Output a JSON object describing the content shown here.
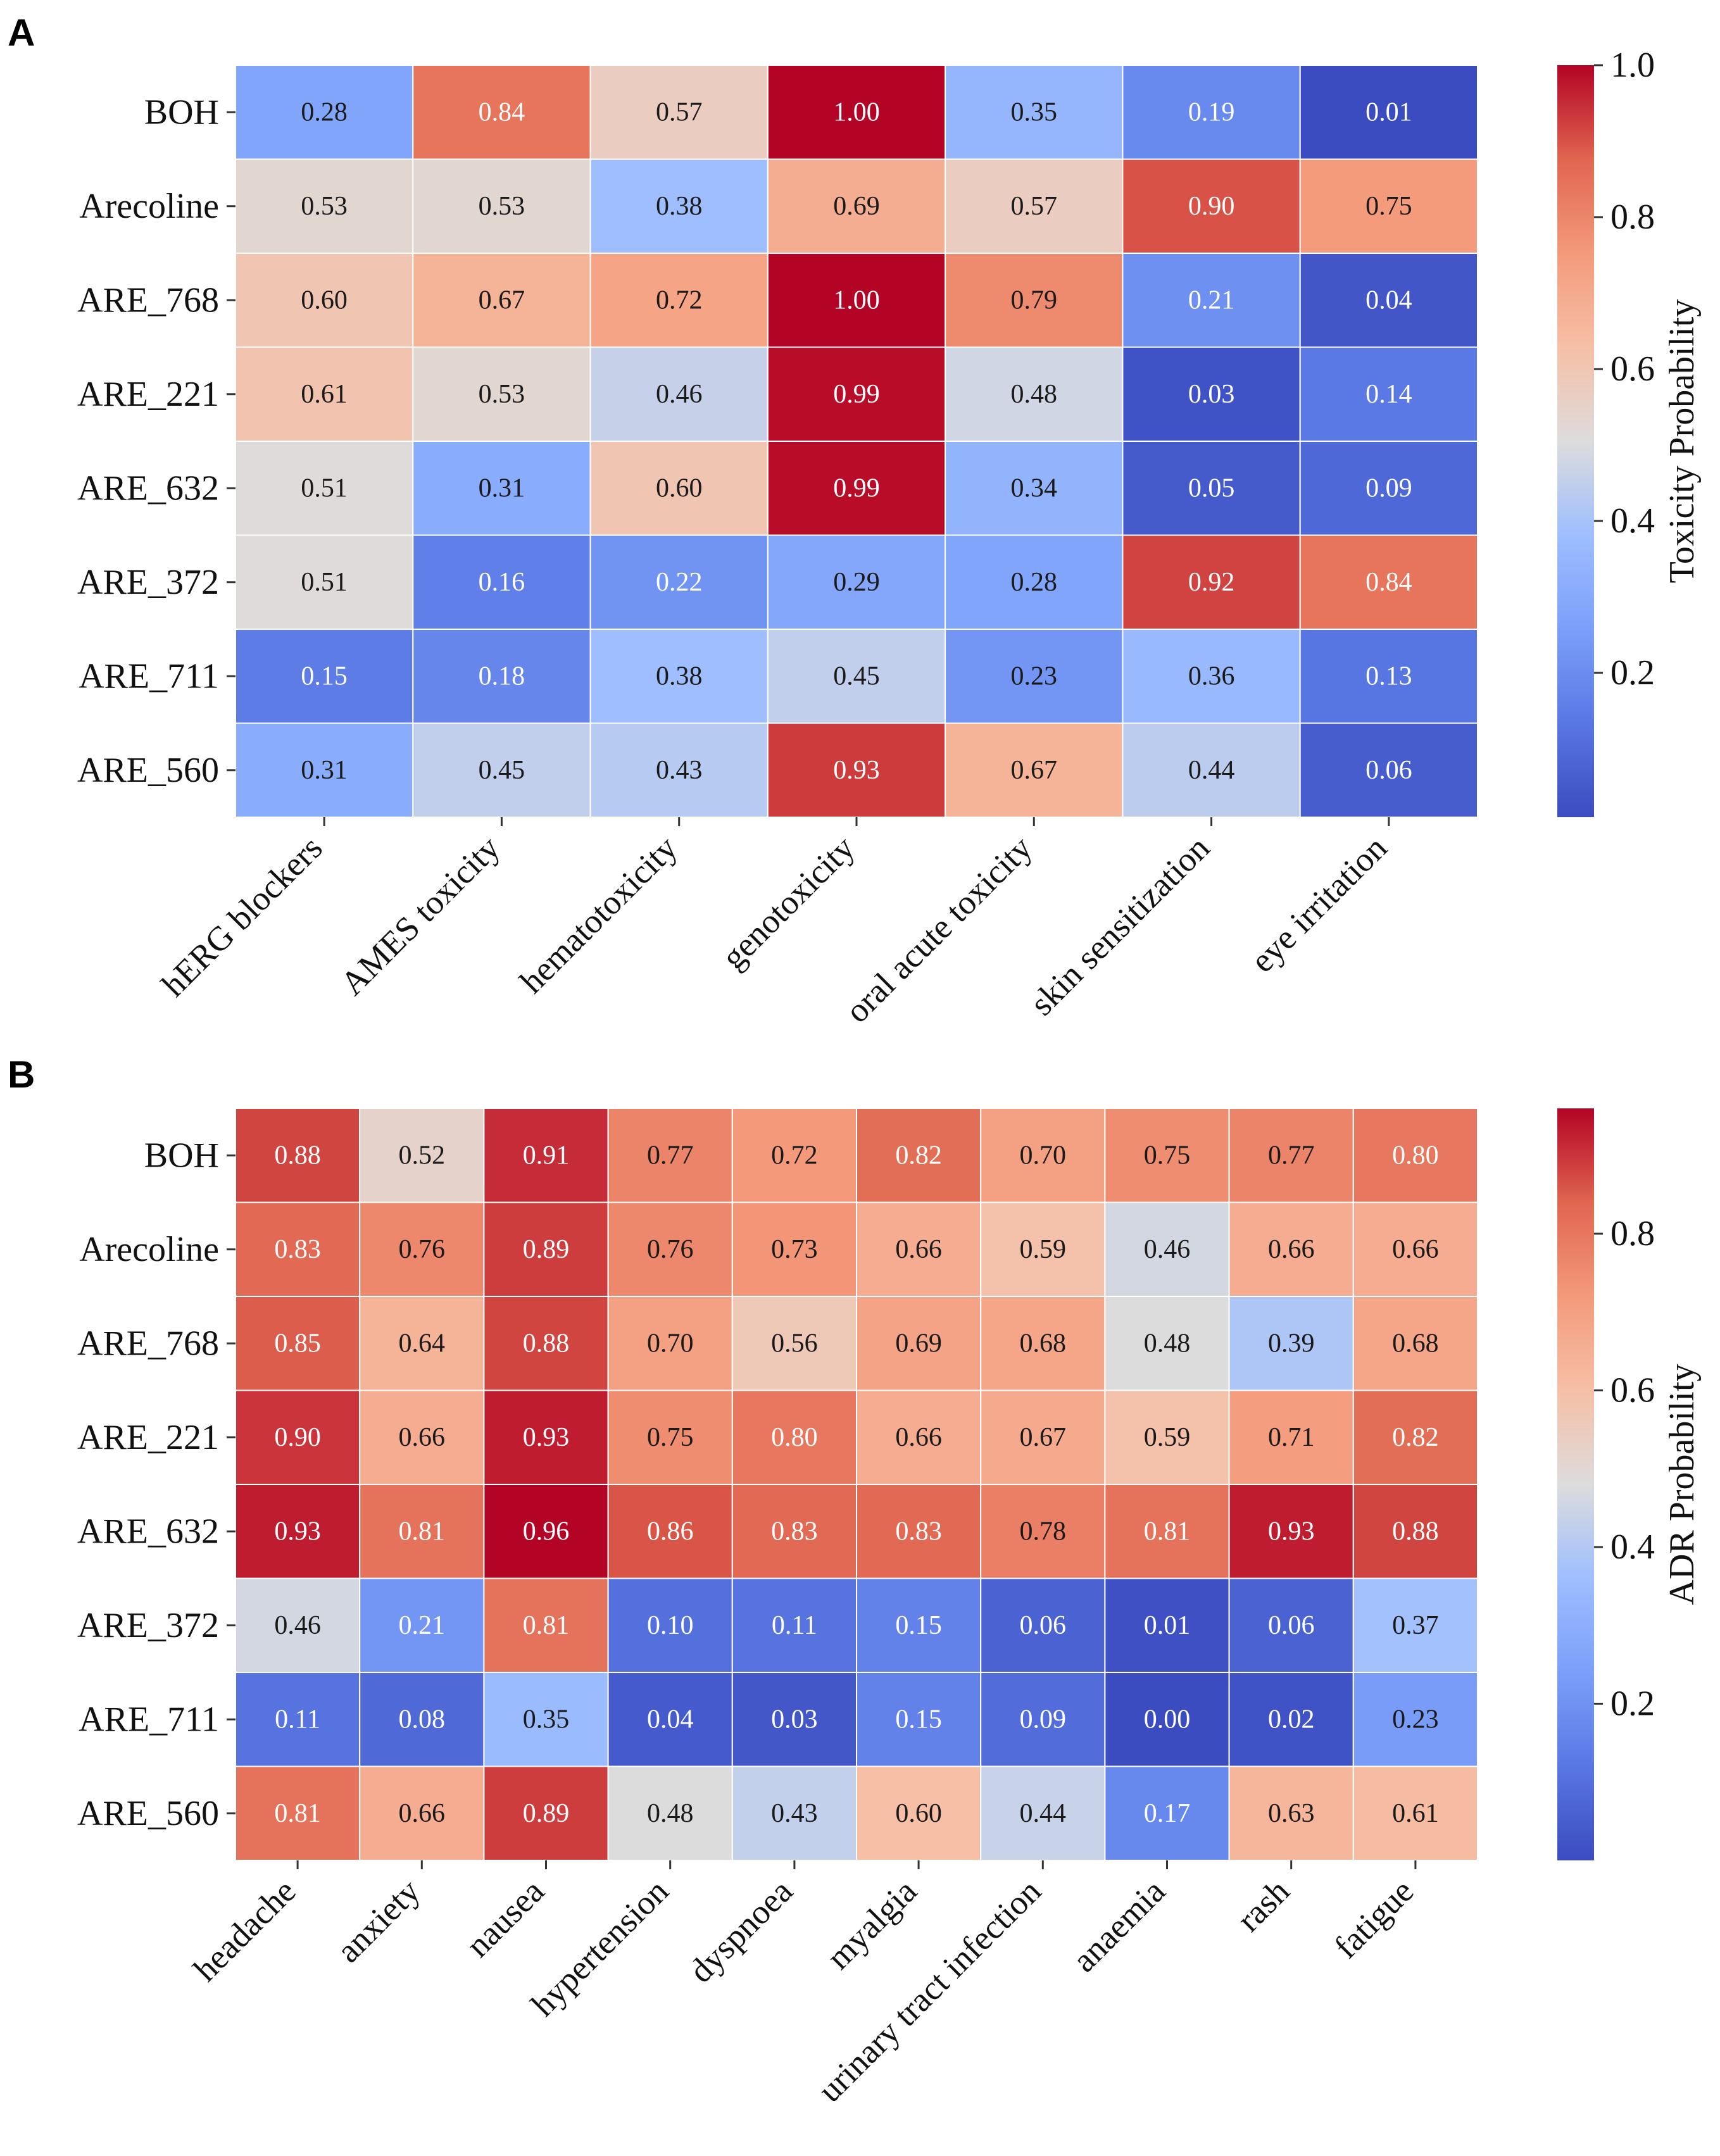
{
  "chart_data": [
    {
      "type": "heatmap",
      "panel": "A",
      "rows": [
        "BOH",
        "Arecoline",
        "ARE_768",
        "ARE_221",
        "ARE_632",
        "ARE_372",
        "ARE_711",
        "ARE_560"
      ],
      "columns": [
        "hERG blockers",
        "AMES toxicity",
        "hematotoxicity",
        "genotoxicity",
        "oral acute toxicity",
        "skin sensitization",
        "eye irritation"
      ],
      "values": [
        [
          0.28,
          0.84,
          0.57,
          1.0,
          0.35,
          0.19,
          0.01
        ],
        [
          0.53,
          0.53,
          0.38,
          0.69,
          0.57,
          0.9,
          0.75
        ],
        [
          0.6,
          0.67,
          0.72,
          1.0,
          0.79,
          0.21,
          0.04
        ],
        [
          0.61,
          0.53,
          0.46,
          0.99,
          0.48,
          0.03,
          0.14
        ],
        [
          0.51,
          0.31,
          0.6,
          0.99,
          0.34,
          0.05,
          0.09
        ],
        [
          0.51,
          0.16,
          0.22,
          0.29,
          0.28,
          0.92,
          0.84
        ],
        [
          0.15,
          0.18,
          0.38,
          0.45,
          0.23,
          0.36,
          0.13
        ],
        [
          0.31,
          0.45,
          0.43,
          0.93,
          0.67,
          0.44,
          0.06
        ]
      ],
      "colorbar": {
        "label": "Toxicity Probability",
        "min": 0.01,
        "max": 1.0,
        "ticks": [
          0.2,
          0.4,
          0.6,
          0.8,
          1.0
        ],
        "tick_labels": [
          "0.2",
          "0.4",
          "0.6",
          "0.8",
          "1.0"
        ]
      },
      "colormap": "coolwarm"
    },
    {
      "type": "heatmap",
      "panel": "B",
      "rows": [
        "BOH",
        "Arecoline",
        "ARE_768",
        "ARE_221",
        "ARE_632",
        "ARE_372",
        "ARE_711",
        "ARE_560"
      ],
      "columns": [
        "headache",
        "anxiety",
        "nausea",
        "hypertension",
        "dyspnoea",
        "myalgia",
        "urinary tract infection",
        "anaemia",
        "rash",
        "fatigue"
      ],
      "values": [
        [
          0.88,
          0.52,
          0.91,
          0.77,
          0.72,
          0.82,
          0.7,
          0.75,
          0.77,
          0.8
        ],
        [
          0.83,
          0.76,
          0.89,
          0.76,
          0.73,
          0.66,
          0.59,
          0.46,
          0.66,
          0.66
        ],
        [
          0.85,
          0.64,
          0.88,
          0.7,
          0.56,
          0.69,
          0.68,
          0.48,
          0.39,
          0.68
        ],
        [
          0.9,
          0.66,
          0.93,
          0.75,
          0.8,
          0.66,
          0.67,
          0.59,
          0.71,
          0.82
        ],
        [
          0.93,
          0.81,
          0.96,
          0.86,
          0.83,
          0.83,
          0.78,
          0.81,
          0.93,
          0.88
        ],
        [
          0.46,
          0.21,
          0.81,
          0.1,
          0.11,
          0.15,
          0.06,
          0.01,
          0.06,
          0.37
        ],
        [
          0.11,
          0.08,
          0.35,
          0.04,
          0.03,
          0.15,
          0.09,
          0.0,
          0.02,
          0.23
        ],
        [
          0.81,
          0.66,
          0.89,
          0.48,
          0.43,
          0.6,
          0.44,
          0.17,
          0.63,
          0.61
        ]
      ],
      "colorbar": {
        "label": "ADR Probability",
        "min": 0.0,
        "max": 0.96,
        "ticks": [
          0.2,
          0.4,
          0.6,
          0.8
        ],
        "tick_labels": [
          "0.2",
          "0.4",
          "0.6",
          "0.8"
        ]
      },
      "colormap": "coolwarm"
    }
  ]
}
